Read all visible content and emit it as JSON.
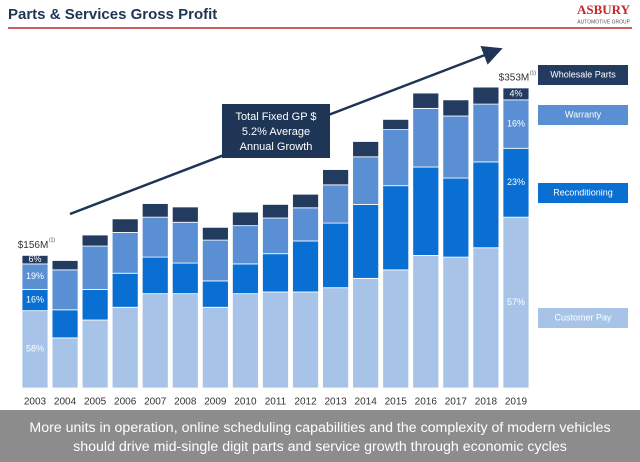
{
  "header": {
    "title": "Parts & Services Gross Profit",
    "logo": "ASBURY",
    "logo_sub": "AUTOMOTIVE GROUP"
  },
  "chart_data": {
    "type": "bar",
    "stacked": true,
    "categories": [
      "2003",
      "2004",
      "2005",
      "2006",
      "2007",
      "2008",
      "2009",
      "2010",
      "2011",
      "2012",
      "2013",
      "2014",
      "2015",
      "2016",
      "2017",
      "2018",
      "2019"
    ],
    "series": [
      {
        "name": "Customer Pay",
        "color": "#a7c4e8",
        "values": [
          91,
          59,
          80,
          95,
          111,
          111,
          95,
          111,
          113,
          113,
          118,
          129,
          139,
          156,
          154,
          165,
          201
        ]
      },
      {
        "name": "Reconditioning",
        "color": "#0a6fd2",
        "values": [
          25,
          33,
          36,
          40,
          43,
          36,
          31,
          35,
          45,
          60,
          76,
          87,
          99,
          104,
          93,
          101,
          81
        ]
      },
      {
        "name": "Warranty",
        "color": "#5a8fd3",
        "values": [
          30,
          47,
          51,
          48,
          47,
          48,
          48,
          45,
          42,
          39,
          45,
          56,
          66,
          69,
          73,
          68,
          57
        ]
      },
      {
        "name": "Wholesale Parts",
        "color": "#243b60",
        "values": [
          10,
          11,
          13,
          16,
          16,
          18,
          15,
          16,
          16,
          16,
          18,
          18,
          12,
          18,
          19,
          20,
          14
        ]
      }
    ],
    "ylim": [
      0,
      360
    ],
    "share_labels": {
      "2003": [
        "58%",
        "16%",
        "19%",
        "6%"
      ],
      "2019": [
        "57%",
        "23%",
        "16%",
        "4%"
      ]
    },
    "total_labels": {
      "2003": "$156M",
      "2019": "$353M"
    },
    "footnote_mark": "(1)",
    "callout": [
      "Total Fixed GP $",
      "5.2% Average",
      "Annual Growth"
    ]
  },
  "footer": [
    "More units in operation, online scheduling capabilities and the complexity of modern vehicles",
    "should drive mid-single digit parts and service growth through economic cycles"
  ]
}
